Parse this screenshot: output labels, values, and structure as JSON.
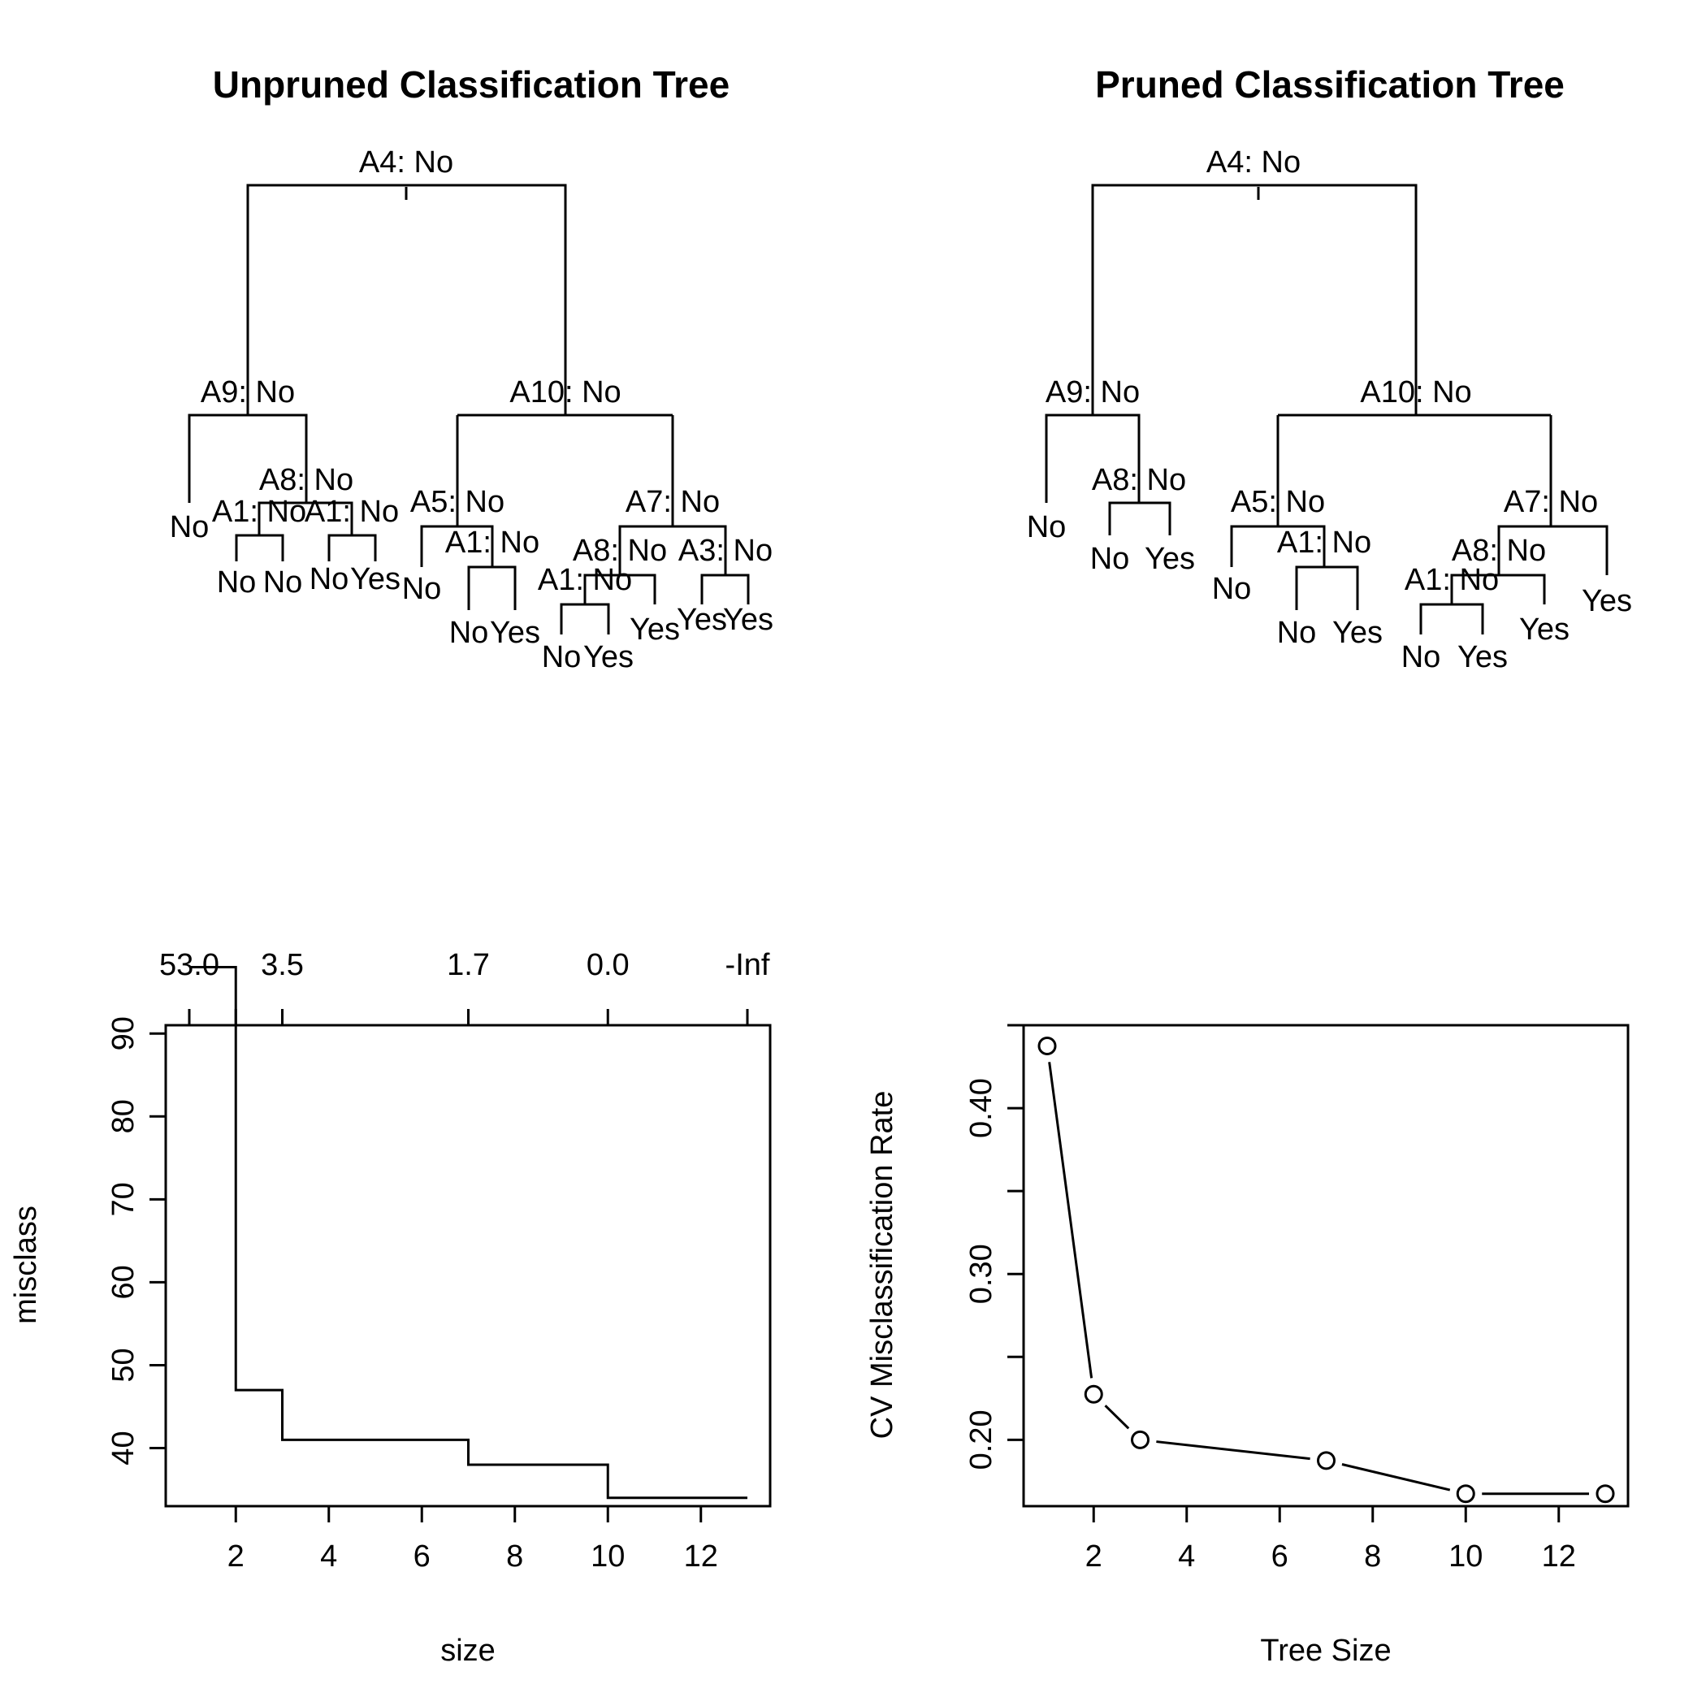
{
  "chart_data": [
    {
      "type": "tree",
      "title": "Unpruned Classification Tree",
      "nodes": [
        {
          "id": "n0",
          "label": "A4: No",
          "parent": null
        },
        {
          "id": "n1",
          "label": "A9: No",
          "parent": "n0"
        },
        {
          "id": "n2",
          "label": "A10: No",
          "parent": "n0"
        },
        {
          "id": "n3",
          "label": "No",
          "parent": "n1",
          "leaf": true
        },
        {
          "id": "n4",
          "label": "A8: No",
          "parent": "n1"
        },
        {
          "id": "n5",
          "label": "A1: No",
          "parent": "n4"
        },
        {
          "id": "n6",
          "label": "A1: No",
          "parent": "n4"
        },
        {
          "id": "n7",
          "label": "No",
          "parent": "n5",
          "leaf": true
        },
        {
          "id": "n8",
          "label": "No",
          "parent": "n5",
          "leaf": true
        },
        {
          "id": "n9",
          "label": "No",
          "parent": "n6",
          "leaf": true
        },
        {
          "id": "n10",
          "label": "Yes",
          "parent": "n6",
          "leaf": true
        },
        {
          "id": "n11",
          "label": "A5: No",
          "parent": "n2"
        },
        {
          "id": "n12",
          "label": "A7: No",
          "parent": "n2"
        },
        {
          "id": "n13",
          "label": "No",
          "parent": "n11",
          "leaf": true
        },
        {
          "id": "n14",
          "label": "A1: No",
          "parent": "n11"
        },
        {
          "id": "n15",
          "label": "No",
          "parent": "n14",
          "leaf": true
        },
        {
          "id": "n16",
          "label": "Yes",
          "parent": "n14",
          "leaf": true
        },
        {
          "id": "n17",
          "label": "A8: No",
          "parent": "n12"
        },
        {
          "id": "n18",
          "label": "A3: No",
          "parent": "n12"
        },
        {
          "id": "n19",
          "label": "A1: No",
          "parent": "n17"
        },
        {
          "id": "n20",
          "label": "Yes",
          "parent": "n17",
          "leaf": true
        },
        {
          "id": "n21",
          "label": "No",
          "parent": "n19",
          "leaf": true
        },
        {
          "id": "n22",
          "label": "Yes",
          "parent": "n19",
          "leaf": true
        },
        {
          "id": "n23",
          "label": "Yes",
          "parent": "n18",
          "leaf": true
        },
        {
          "id": "n24",
          "label": "Yes",
          "parent": "n18",
          "leaf": true
        }
      ]
    },
    {
      "type": "tree",
      "title": "Pruned Classification Tree",
      "nodes": [
        {
          "id": "n0",
          "label": "A4: No",
          "parent": null
        },
        {
          "id": "n1",
          "label": "A9: No",
          "parent": "n0"
        },
        {
          "id": "n2",
          "label": "A10: No",
          "parent": "n0"
        },
        {
          "id": "n3",
          "label": "No",
          "parent": "n1",
          "leaf": true
        },
        {
          "id": "n4",
          "label": "A8: No",
          "parent": "n1"
        },
        {
          "id": "n5",
          "label": "No",
          "parent": "n4",
          "leaf": true
        },
        {
          "id": "n6",
          "label": "Yes",
          "parent": "n4",
          "leaf": true
        },
        {
          "id": "n7",
          "label": "A5: No",
          "parent": "n2"
        },
        {
          "id": "n8",
          "label": "A7: No",
          "parent": "n2"
        },
        {
          "id": "n9",
          "label": "No",
          "parent": "n7",
          "leaf": true
        },
        {
          "id": "n10",
          "label": "A1: No",
          "parent": "n7"
        },
        {
          "id": "n11",
          "label": "No",
          "parent": "n10",
          "leaf": true
        },
        {
          "id": "n12",
          "label": "Yes",
          "parent": "n10",
          "leaf": true
        },
        {
          "id": "n13",
          "label": "A8: No",
          "parent": "n8"
        },
        {
          "id": "n14",
          "label": "Yes",
          "parent": "n8",
          "leaf": true
        },
        {
          "id": "n15",
          "label": "A1: No",
          "parent": "n13"
        },
        {
          "id": "n16",
          "label": "Yes",
          "parent": "n13",
          "leaf": true
        },
        {
          "id": "n17",
          "label": "No",
          "parent": "n15",
          "leaf": true
        },
        {
          "id": "n18",
          "label": "Yes",
          "parent": "n15",
          "leaf": true
        }
      ]
    },
    {
      "type": "line",
      "subtype": "step",
      "title": "",
      "xlabel": "size",
      "ylabel": "misclass",
      "x": [
        1,
        2,
        3,
        7,
        10,
        13
      ],
      "y": [
        98,
        47,
        41,
        38,
        34,
        34
      ],
      "xlim": [
        0.5,
        13.5
      ],
      "ylim": [
        33,
        91
      ],
      "x_ticks": [
        2,
        4,
        6,
        8,
        10,
        12
      ],
      "y_ticks": [
        40,
        50,
        60,
        70,
        80,
        90
      ],
      "top_axis": {
        "positions": [
          1,
          2,
          3,
          7,
          10,
          13
        ],
        "labels": [
          "53.0",
          "",
          "3.5",
          "1.7",
          "0.0",
          "-Inf"
        ]
      },
      "grid": false
    },
    {
      "type": "line",
      "subtype": "points-and-lines",
      "title": "",
      "xlabel": "Tree Size",
      "ylabel": "CV Misclassification Rate",
      "x": [
        1,
        2,
        3,
        7,
        10,
        13
      ],
      "y": [
        0.4375,
        0.2275,
        0.2,
        0.1875,
        0.1675,
        0.1675
      ],
      "xlim": [
        0.5,
        13.5
      ],
      "ylim": [
        0.16,
        0.45
      ],
      "x_ticks": [
        2,
        4,
        6,
        8,
        10,
        12
      ],
      "y_ticks": [
        0.2,
        0.25,
        0.3,
        0.35,
        0.4,
        0.45
      ],
      "y_tick_labels": [
        "0.20",
        "",
        "0.30",
        "",
        "0.40",
        ""
      ],
      "grid": false
    }
  ]
}
